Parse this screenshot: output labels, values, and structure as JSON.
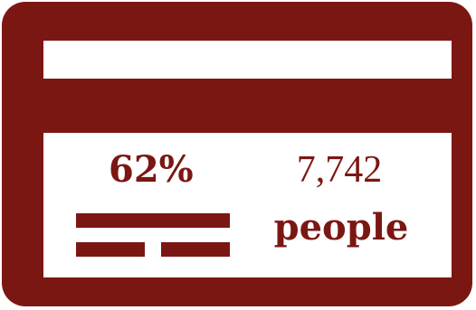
{
  "card": {
    "percent": "62%",
    "count": "7,742",
    "unit": "people"
  },
  "colors": {
    "primary": "#7b1713",
    "background": "#ffffff"
  },
  "icons": [
    "credit-card-icon",
    "text-lines-icon"
  ]
}
